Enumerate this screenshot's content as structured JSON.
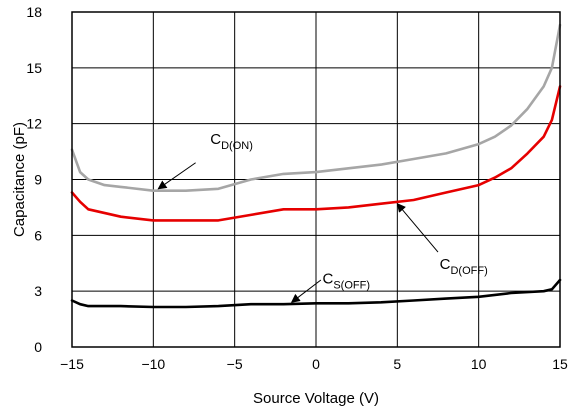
{
  "chart_data": {
    "type": "line",
    "xlabel": "Source Voltage (V)",
    "ylabel": "Capacitance (pF)",
    "xlim": [
      -15,
      15
    ],
    "ylim": [
      0,
      18
    ],
    "x_ticks": [
      -15,
      -10,
      -5,
      0,
      5,
      10,
      15
    ],
    "x_tick_labels": [
      "−15",
      "−10",
      "−5",
      "0",
      "5",
      "10",
      "15"
    ],
    "y_ticks": [
      0,
      3,
      6,
      9,
      12,
      15,
      18
    ],
    "y_tick_labels": [
      "0",
      "3",
      "6",
      "9",
      "12",
      "15",
      "18"
    ],
    "grid": true,
    "series": [
      {
        "color": "#a6a6a6",
        "x": [
          -15,
          -14.5,
          -14,
          -13,
          -12,
          -10,
          -8,
          -6,
          -4,
          -2,
          0,
          2,
          4,
          6,
          8,
          10,
          11,
          12,
          13,
          14,
          14.5,
          15
        ],
        "y": [
          10.6,
          9.4,
          9.0,
          8.7,
          8.6,
          8.4,
          8.4,
          8.5,
          9.0,
          9.3,
          9.4,
          9.6,
          9.8,
          10.1,
          10.4,
          10.9,
          11.3,
          11.9,
          12.8,
          14.0,
          15.0,
          17.3
        ]
      },
      {
        "color": "#e60000",
        "x": [
          -15,
          -14.5,
          -14,
          -12,
          -10,
          -8,
          -6,
          -4,
          -2,
          0,
          2,
          4,
          6,
          8,
          10,
          11,
          12,
          13,
          14,
          14.5,
          15
        ],
        "y": [
          8.3,
          7.8,
          7.4,
          7.0,
          6.8,
          6.8,
          6.8,
          7.1,
          7.4,
          7.4,
          7.5,
          7.7,
          7.9,
          8.3,
          8.7,
          9.1,
          9.6,
          10.4,
          11.3,
          12.2,
          14.0
        ]
      },
      {
        "color": "#000000",
        "x": [
          -15,
          -14.5,
          -14,
          -12,
          -10,
          -8,
          -6,
          -4,
          -2,
          0,
          2,
          4,
          6,
          8,
          10,
          12,
          14,
          14.5,
          15
        ],
        "y": [
          2.5,
          2.3,
          2.2,
          2.2,
          2.15,
          2.15,
          2.2,
          2.3,
          2.3,
          2.35,
          2.35,
          2.4,
          2.5,
          2.6,
          2.7,
          2.9,
          3.0,
          3.1,
          3.6
        ]
      }
    ],
    "annotations": [
      {
        "main": "C",
        "sub": "D(ON)",
        "text_x": -6.5,
        "text_y": 10.9,
        "arrow_from_x": -7.4,
        "arrow_from_y": 9.9,
        "arrow_to_x": -9.7,
        "arrow_to_y": 8.5
      },
      {
        "main": "C",
        "sub": "D(OFF)",
        "text_x": 7.6,
        "text_y": 4.2,
        "arrow_from_x": 7.5,
        "arrow_from_y": 5.1,
        "arrow_to_x": 5.0,
        "arrow_to_y": 7.7
      },
      {
        "main": "C",
        "sub": "S(OFF)",
        "text_x": 0.4,
        "text_y": 3.4,
        "arrow_from_x": 0.3,
        "arrow_from_y": 3.6,
        "arrow_to_x": -1.5,
        "arrow_to_y": 2.4
      }
    ]
  }
}
